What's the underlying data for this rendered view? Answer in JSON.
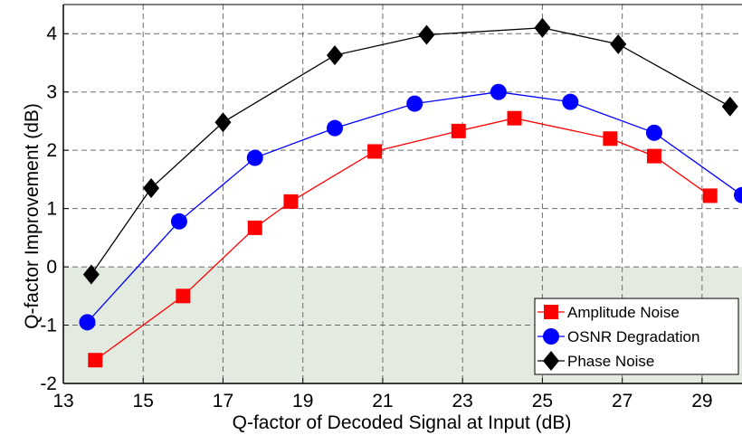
{
  "chart_data": {
    "type": "line",
    "title": "",
    "xlabel": "Q-factor of Decoded Signal at Input (dB)",
    "ylabel": "Q-factor Improvement (dB)",
    "xlim": [
      13,
      30
    ],
    "ylim": [
      -2,
      4.5
    ],
    "xticks": [
      13,
      15,
      17,
      19,
      21,
      23,
      25,
      27,
      29
    ],
    "yticks": [
      -2,
      -1,
      0,
      1,
      2,
      3,
      4
    ],
    "grid": true,
    "shaded_region": {
      "y_from": -2,
      "y_to": 0,
      "color": "#e3ebe0"
    },
    "legend_position": "bottom-right",
    "series": [
      {
        "name": "Amplitude Noise",
        "color": "#ff0000",
        "marker": "square",
        "x": [
          13.8,
          16.0,
          17.8,
          18.7,
          20.8,
          22.9,
          24.3,
          26.7,
          27.8,
          29.2
        ],
        "y": [
          -1.6,
          -0.5,
          0.67,
          1.12,
          1.98,
          2.33,
          2.55,
          2.2,
          1.9,
          1.22
        ]
      },
      {
        "name": "OSNR Degradation",
        "color": "#0000ff",
        "marker": "circle",
        "x": [
          13.6,
          15.9,
          17.8,
          19.8,
          21.8,
          23.9,
          25.7,
          27.8,
          30.0
        ],
        "y": [
          -0.95,
          0.78,
          1.87,
          2.38,
          2.8,
          3.0,
          2.83,
          2.3,
          1.23
        ]
      },
      {
        "name": "Phase Noise",
        "color": "#000000",
        "marker": "diamond",
        "x": [
          13.7,
          15.2,
          17.0,
          19.8,
          22.1,
          25.0,
          26.9,
          29.7
        ],
        "y": [
          -0.13,
          1.35,
          2.48,
          3.63,
          3.98,
          4.1,
          3.82,
          2.75
        ]
      }
    ]
  }
}
